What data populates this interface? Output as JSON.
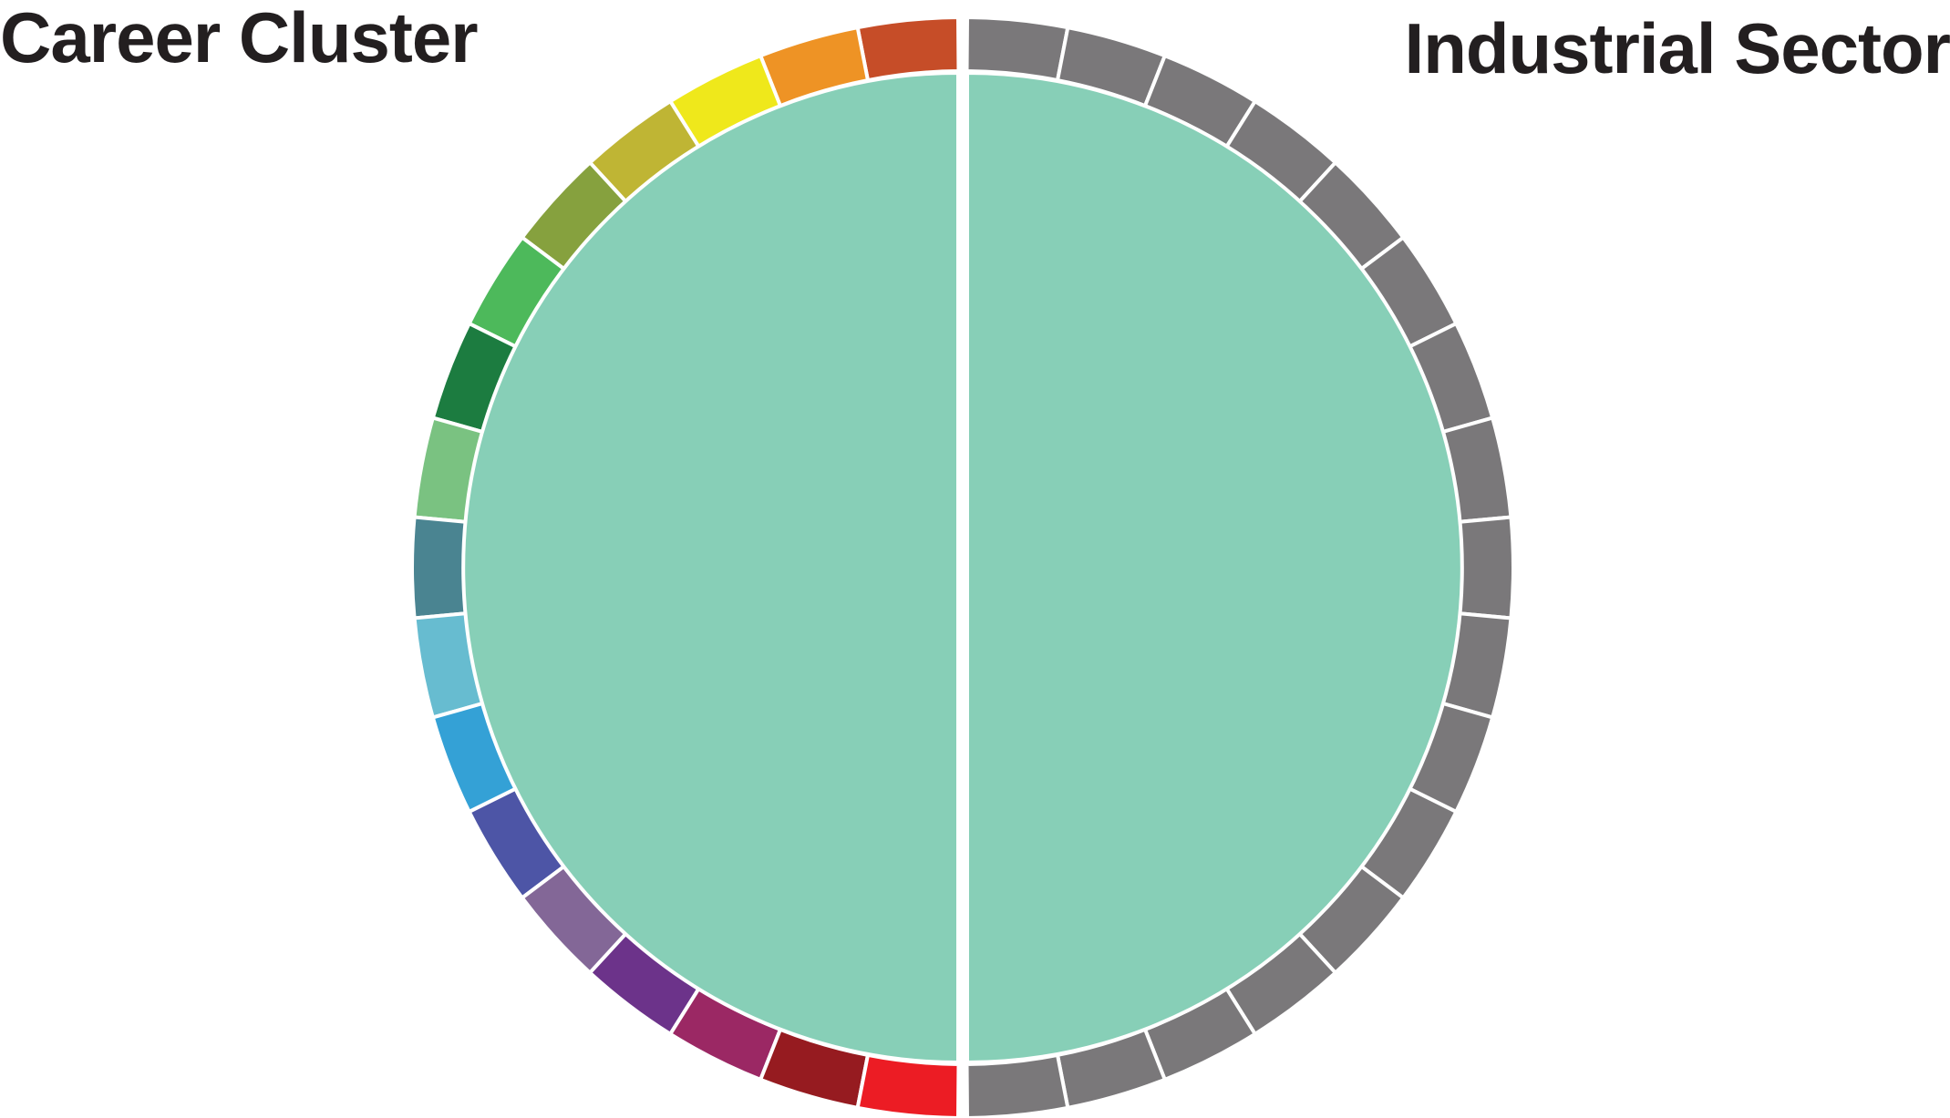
{
  "headings": {
    "left": "Career Cluster",
    "right": "Industrial Sector"
  },
  "colors": {
    "inner": "#87cfb7",
    "separator": "#ffffff",
    "sector": "#7a787a"
  },
  "career_cluster_colors": [
    "#c64d28",
    "#ee9325",
    "#efe81b",
    "#bfb534",
    "#86a13e",
    "#4db95b",
    "#1c7c40",
    "#7ac281",
    "#4a8491",
    "#67bcd0",
    "#34a1d6",
    "#4d55a6",
    "#836797",
    "#6c338a",
    "#9b2864",
    "#961b20",
    "#ec1c24"
  ],
  "industrial_sector_count": 17
}
